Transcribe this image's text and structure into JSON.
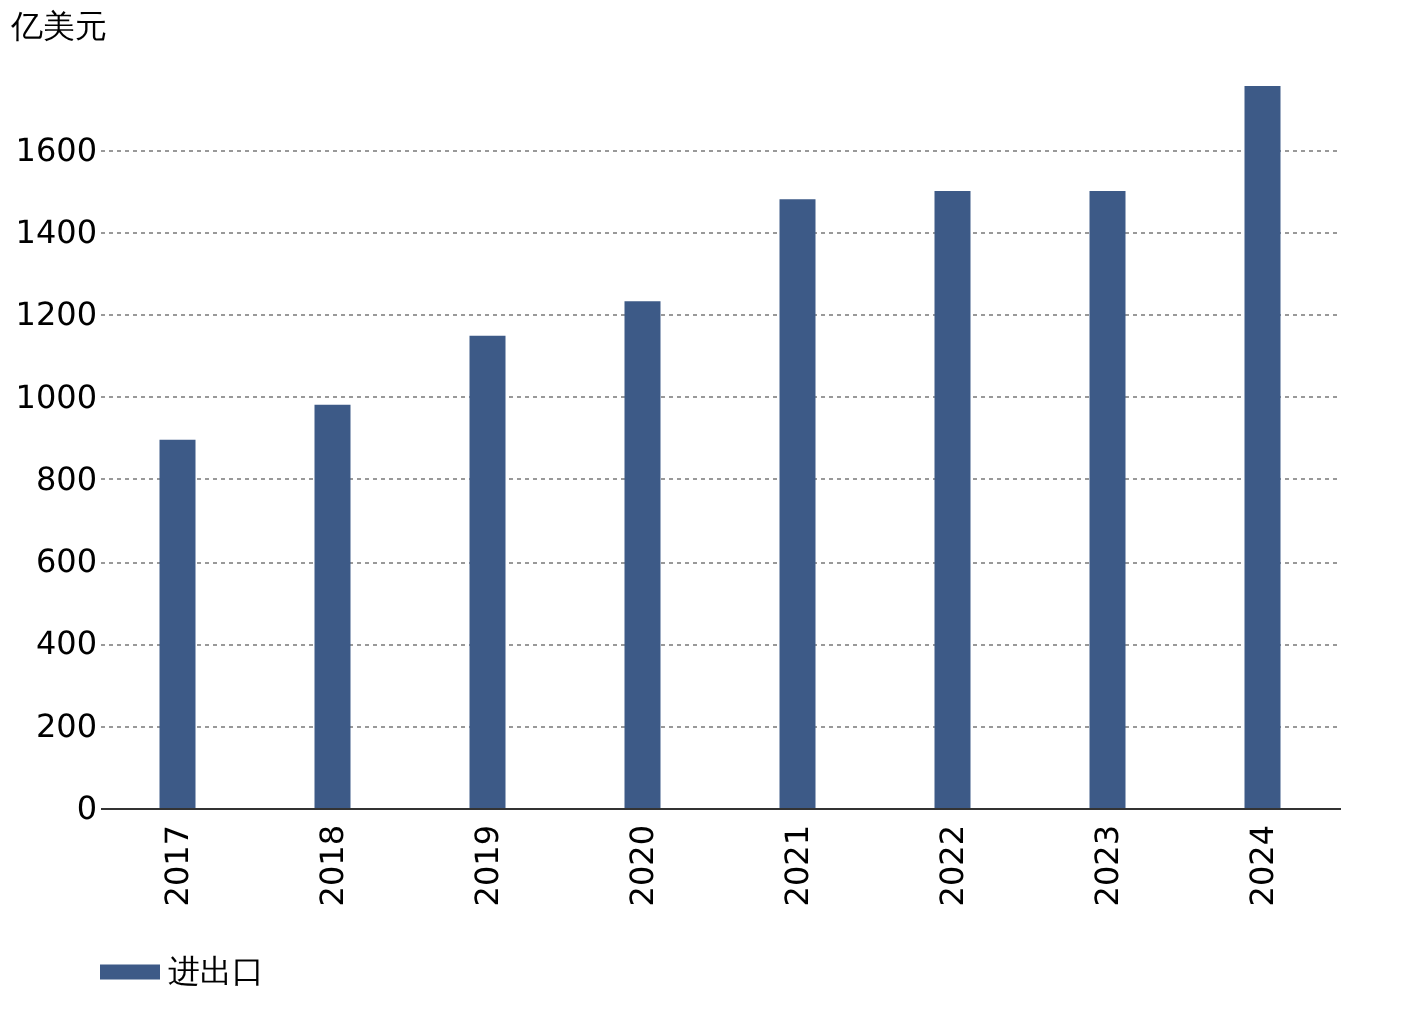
{
  "chart_data": {
    "type": "bar",
    "ylabel": "亿美元",
    "categories": [
      "2017",
      "2018",
      "2019",
      "2020",
      "2021",
      "2022",
      "2023",
      "2024"
    ],
    "series": [
      {
        "name": "进出口",
        "color": "#3d5a87",
        "values": [
          895,
          980,
          1148,
          1232,
          1480,
          1500,
          1500,
          1755
        ]
      }
    ],
    "ylim": [
      0,
      1755
    ],
    "yticks": [
      0,
      200,
      400,
      600,
      800,
      1000,
      1200,
      1400,
      1600
    ],
    "grid": "y",
    "legend": "bottom"
  }
}
